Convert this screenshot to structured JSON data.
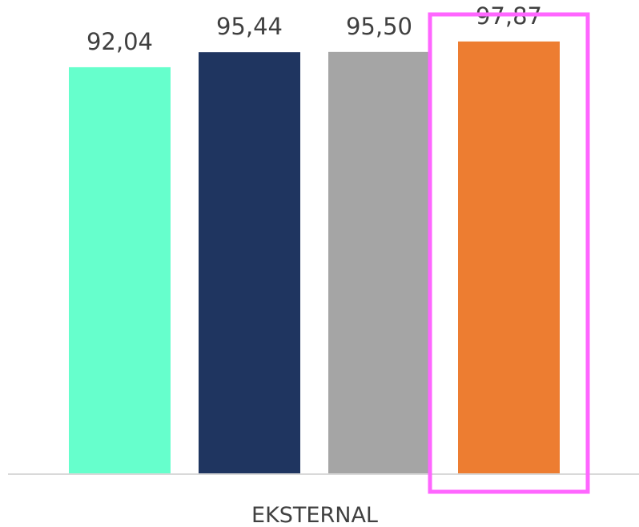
{
  "chart_data": {
    "type": "bar",
    "categories": [
      "EKSTERNAL"
    ],
    "series": [
      {
        "values": [
          92.04
        ],
        "label": "92,04",
        "color": "#66FFCC"
      },
      {
        "values": [
          95.44
        ],
        "label": "95,44",
        "color": "#1F3560"
      },
      {
        "values": [
          95.5
        ],
        "label": "95,50",
        "color": "#A5A5A5"
      },
      {
        "values": [
          97.87
        ],
        "label": "97,87",
        "color": "#ED7D31"
      }
    ],
    "ylim": [
      0,
      100
    ],
    "grid": false,
    "legend": "none",
    "highlight": {
      "series_index": 3,
      "color": "#FF66FF"
    }
  }
}
